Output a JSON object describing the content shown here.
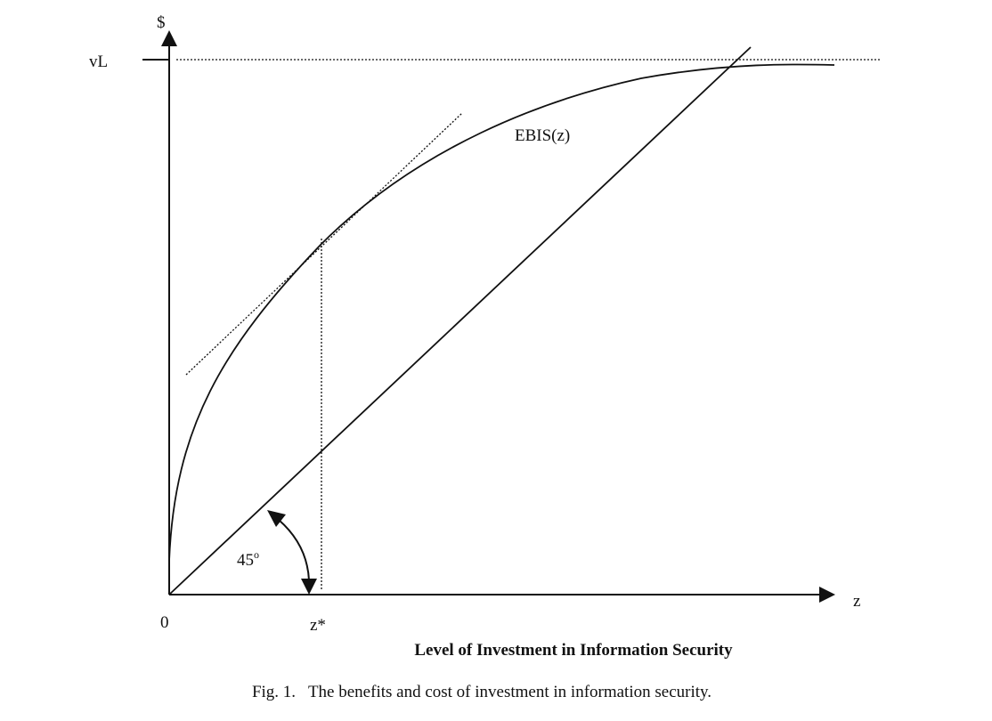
{
  "figure": {
    "y_axis_label": "$",
    "x_axis_label": "z",
    "origin_label": "0",
    "vl_label": "vL",
    "curve_label": "EBIS(z)",
    "zstar_label": "z*",
    "angle_label": "45",
    "angle_degree_symbol": "o",
    "x_title": "Level of Investment in Information Security",
    "caption": "Fig. 1.   The benefits and cost of investment in information security."
  },
  "colors": {
    "ink": "#111111",
    "background": "#ffffff"
  }
}
